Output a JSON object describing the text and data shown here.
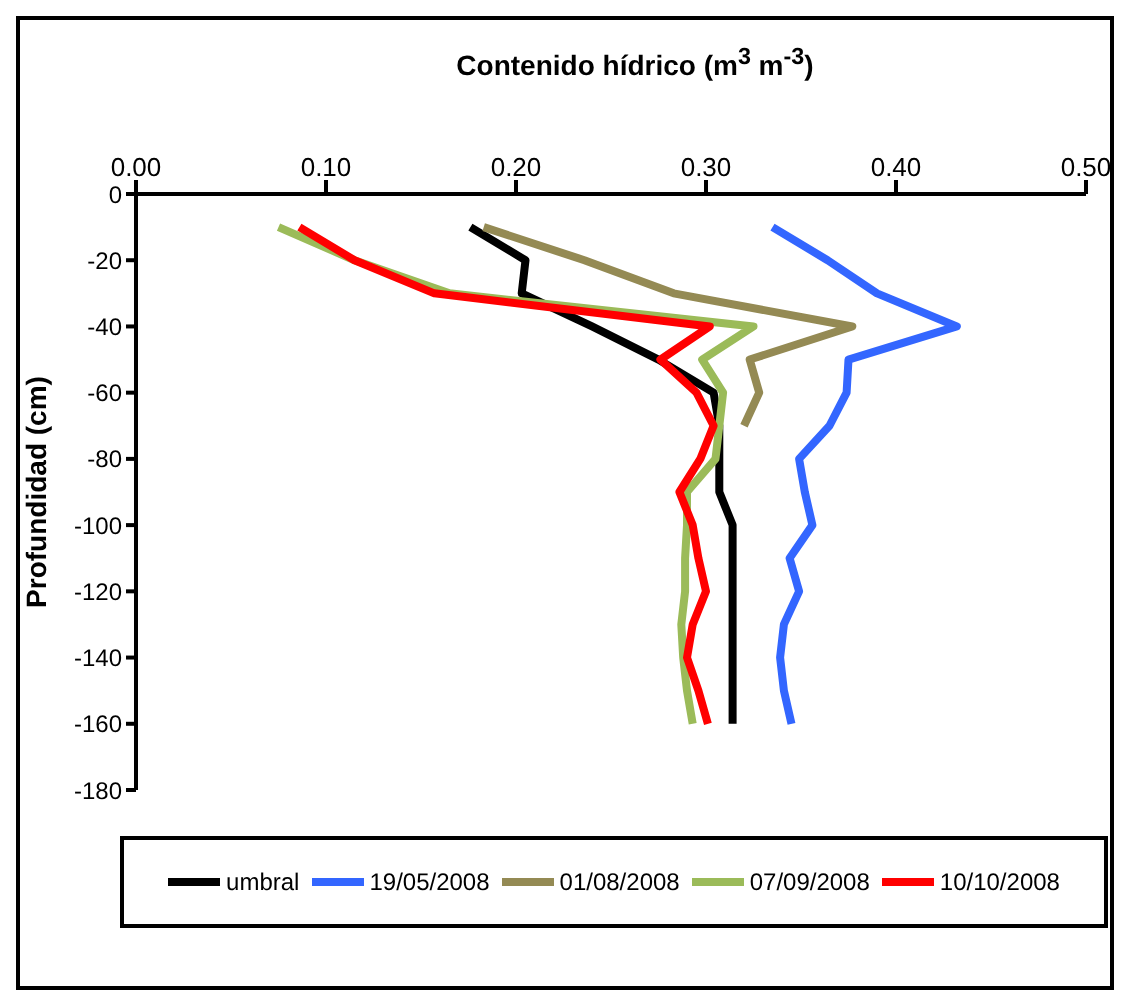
{
  "chart_data": {
    "type": "line",
    "xlabel": "Contenido hídrico (m$^{3}$ m$^{-3}$)",
    "ylabel": "Profundidad (cm)",
    "xlim": [
      0,
      0.5
    ],
    "xticks": [
      {
        "value": 0,
        "label": "0.00"
      },
      {
        "value": 0.1,
        "label": "0.10"
      },
      {
        "value": 0.2,
        "label": "0.20"
      },
      {
        "value": 0.3,
        "label": "0.30"
      },
      {
        "value": 0.4,
        "label": "0.40"
      },
      {
        "value": 0.5,
        "label": "0.50"
      }
    ],
    "ylim": [
      -180,
      0
    ],
    "yticks": [
      0,
      -20,
      -40,
      -60,
      -80,
      -100,
      -120,
      -140,
      -160,
      -180
    ],
    "grid": false,
    "legend": "bottom",
    "marker": "none",
    "line_style": "solid",
    "series": [
      {
        "name": "umbral",
        "color": "#000000",
        "x": [
          0.176,
          0.205,
          0.203,
          0.24,
          0.275,
          0.304,
          0.307,
          0.307,
          0.307,
          0.314,
          0.314,
          0.314,
          0.314,
          0.314,
          0.314,
          0.314
        ],
        "values": [
          -10,
          -20,
          -30,
          -40,
          -50,
          -60,
          -70,
          -80,
          -90,
          -100,
          -110,
          -120,
          -130,
          -140,
          -150,
          -160
        ]
      },
      {
        "name": "19/05/2008",
        "color": "#3366ff",
        "x": [
          0.335,
          0.364,
          0.39,
          0.432,
          0.375,
          0.374,
          0.365,
          0.349,
          0.352,
          0.356,
          0.344,
          0.349,
          0.341,
          0.339,
          0.341,
          0.345
        ],
        "values": [
          -10,
          -20,
          -30,
          -40,
          -50,
          -60,
          -70,
          -80,
          -90,
          -100,
          -110,
          -120,
          -130,
          -140,
          -150,
          -160
        ]
      },
      {
        "name": "01/08/2008",
        "color": "#948a54",
        "x": [
          0.183,
          0.236,
          0.283,
          0.377,
          0.323,
          0.328,
          0.32
        ],
        "values": [
          -10,
          -20,
          -30,
          -40,
          -50,
          -60,
          -70
        ]
      },
      {
        "name": "07/09/2008",
        "color": "#9bbb59",
        "x": [
          0.075,
          0.115,
          0.165,
          0.325,
          0.298,
          0.309,
          0.307,
          0.305,
          0.29,
          0.29,
          0.289,
          0.289,
          0.287,
          0.288,
          0.29,
          0.293
        ],
        "values": [
          -10,
          -20,
          -30,
          -40,
          -50,
          -60,
          -70,
          -80,
          -90,
          -100,
          -110,
          -120,
          -130,
          -140,
          -150,
          -160
        ]
      },
      {
        "name": "10/10/2008",
        "color": "#ff0000",
        "x": [
          0.086,
          0.115,
          0.157,
          0.302,
          0.276,
          0.295,
          0.304,
          0.297,
          0.286,
          0.293,
          0.296,
          0.3,
          0.293,
          0.29,
          0.296,
          0.301
        ],
        "values": [
          -10,
          -20,
          -30,
          -40,
          -50,
          -60,
          -70,
          -80,
          -90,
          -100,
          -110,
          -120,
          -130,
          -140,
          -150,
          -160
        ]
      }
    ]
  }
}
